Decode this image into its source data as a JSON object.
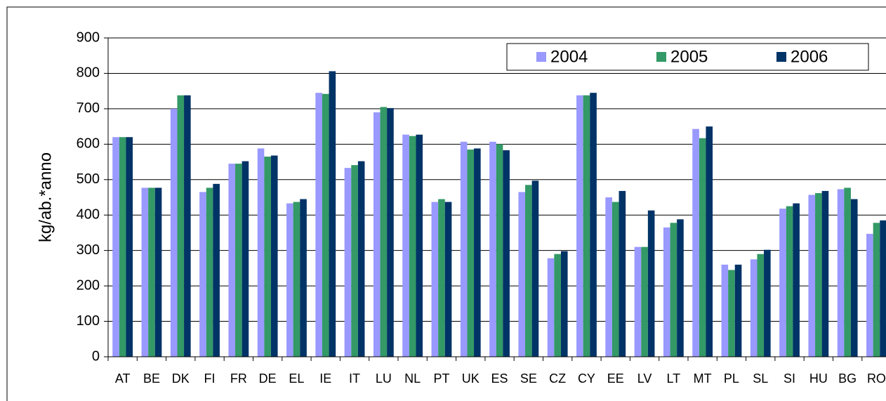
{
  "chart_data": {
    "type": "bar",
    "y_label": "kg/ab.*anno",
    "categories": [
      "AT",
      "BE",
      "DK",
      "FI",
      "FR",
      "DE",
      "EL",
      "IE",
      "IT",
      "LU",
      "NL",
      "PT",
      "UK",
      "ES",
      "SE",
      "CZ",
      "CY",
      "EE",
      "LV",
      "LT",
      "MT",
      "PL",
      "SL",
      "SI",
      "HU",
      "BG",
      "RO"
    ],
    "series": [
      {
        "name": "2004",
        "color": "#9999ff",
        "values": [
          620,
          477,
          700,
          465,
          545,
          588,
          433,
          745,
          533,
          690,
          627,
          437,
          607,
          607,
          465,
          278,
          738,
          450,
          310,
          365,
          643,
          260,
          275,
          418,
          457,
          473,
          347
        ]
      },
      {
        "name": "2005",
        "color": "#339966",
        "values": [
          620,
          477,
          738,
          477,
          545,
          565,
          437,
          742,
          541,
          705,
          623,
          445,
          585,
          600,
          485,
          290,
          738,
          437,
          310,
          378,
          617,
          245,
          290,
          425,
          462,
          477,
          378
        ]
      },
      {
        "name": "2006",
        "color": "#003366",
        "values": [
          620,
          477,
          738,
          488,
          552,
          568,
          445,
          806,
          552,
          702,
          627,
          437,
          588,
          583,
          497,
          298,
          745,
          468,
          413,
          388,
          650,
          260,
          302,
          433,
          468,
          445,
          385
        ]
      }
    ],
    "ylim": [
      0,
      900
    ],
    "yticks": [
      0,
      100,
      200,
      300,
      400,
      500,
      600,
      700,
      800,
      900
    ],
    "grid": true,
    "legend": "top-right"
  }
}
